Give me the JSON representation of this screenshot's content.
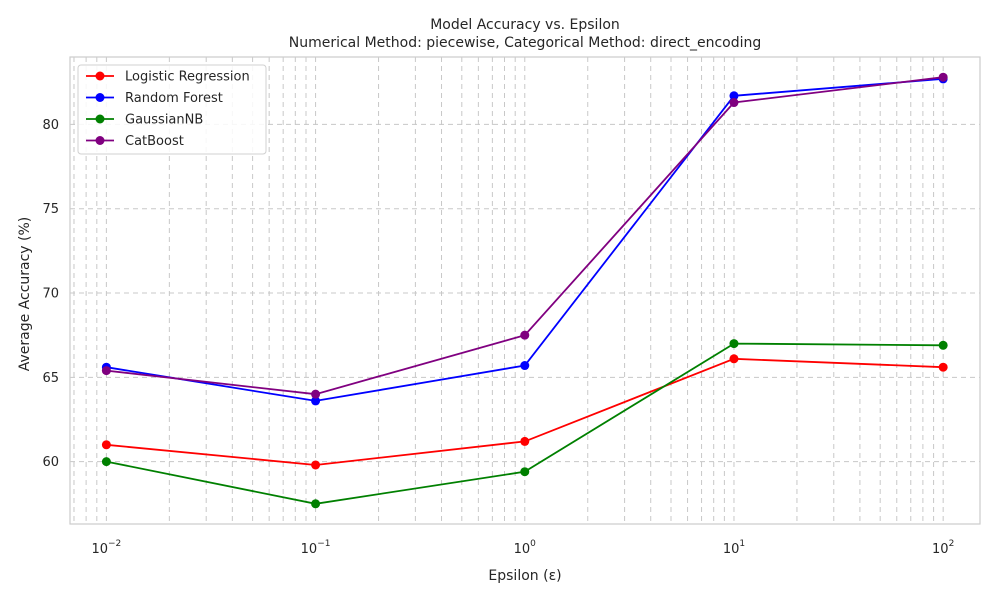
{
  "chart_data": {
    "type": "line",
    "title": "Model Accuracy vs. Epsilon",
    "subtitle": "Numerical Method: piecewise, Categorical Method: direct_encoding",
    "xlabel": "Epsilon (ε)",
    "ylabel": "Average Accuracy (%)",
    "x_scale": "log",
    "x": [
      0.01,
      0.1,
      1,
      10,
      100
    ],
    "x_ticks": [
      {
        "value": 0.01,
        "base": "10",
        "exp": "−2"
      },
      {
        "value": 0.1,
        "base": "10",
        "exp": "−1"
      },
      {
        "value": 1,
        "base": "10",
        "exp": "0"
      },
      {
        "value": 10,
        "base": "10",
        "exp": "1"
      },
      {
        "value": 100,
        "base": "10",
        "exp": "2"
      }
    ],
    "xlim": [
      0.0067,
      150
    ],
    "y_ticks": [
      60,
      65,
      70,
      75,
      80
    ],
    "ylim": [
      56.3,
      84
    ],
    "grid": true,
    "legend_position": "top-left",
    "series": [
      {
        "name": "Logistic Regression",
        "color": "#ff0000",
        "values": [
          61.0,
          59.8,
          61.2,
          66.1,
          65.6
        ]
      },
      {
        "name": "Random Forest",
        "color": "#0000ff",
        "values": [
          65.6,
          63.6,
          65.7,
          81.7,
          82.7
        ]
      },
      {
        "name": "GaussianNB",
        "color": "#008000",
        "values": [
          60.0,
          57.5,
          59.4,
          67.0,
          66.9
        ]
      },
      {
        "name": "CatBoost",
        "color": "#800080",
        "values": [
          65.4,
          64.0,
          67.5,
          81.3,
          82.8
        ]
      }
    ]
  }
}
